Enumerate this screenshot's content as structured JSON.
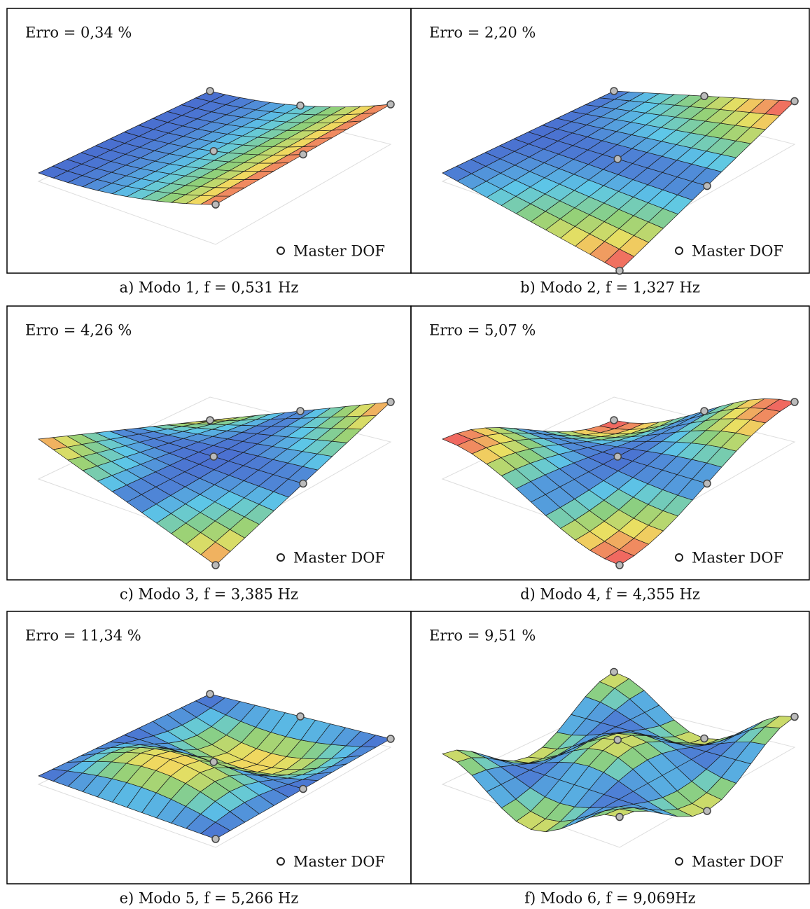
{
  "panels": [
    {
      "error": "Erro = 0,34 %",
      "legend": "Master DOF",
      "caption": "a) Modo 1, f = 0,531 Hz"
    },
    {
      "error": "Erro = 2,20 %",
      "legend": "Master DOF",
      "caption": "b) Modo 2, f = 1,327 Hz"
    },
    {
      "error": "Erro = 4,26 %",
      "legend": "Master DOF",
      "caption": "c) Modo 3, f = 3,385 Hz"
    },
    {
      "error": "Erro = 5,07 %",
      "legend": "Master DOF",
      "caption": "d) Modo 4, f = 4,355 Hz"
    },
    {
      "error": "Erro = 11,34 %",
      "legend": "Master DOF",
      "caption": "e) Modo 5, f = 5,266 Hz"
    },
    {
      "error": "Erro = 9,51 %",
      "legend": "Master DOF",
      "caption": "f) Modo 6, f = 9,069Hz"
    }
  ]
}
